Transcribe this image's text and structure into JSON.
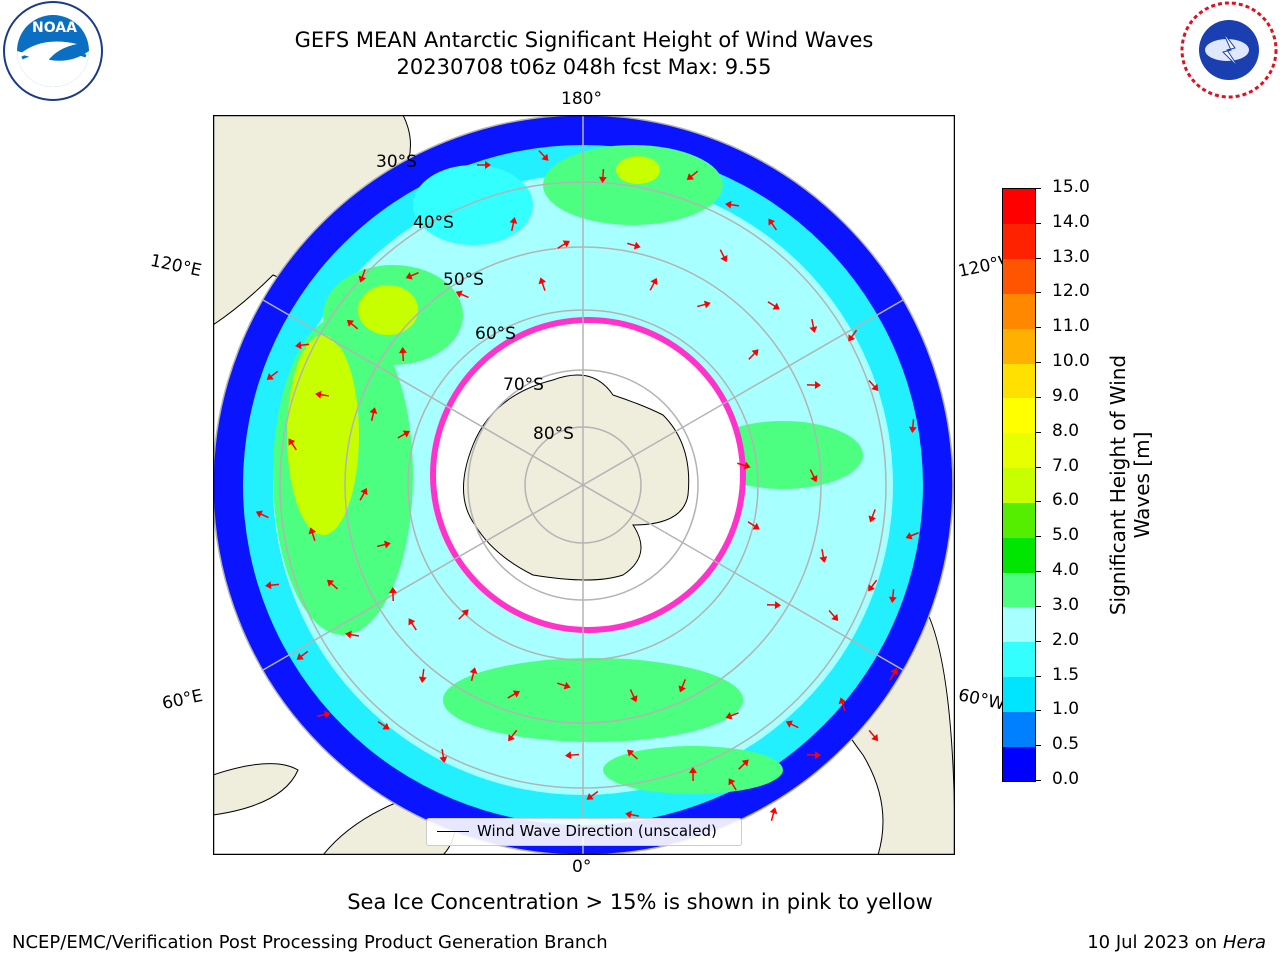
{
  "title": {
    "line1": "GEFS MEAN Antarctic Significant Height of Wind Waves",
    "line2": "20230708 t06z 048h fcst   Max: 9.55"
  },
  "logos": {
    "left": {
      "icon": "noaa-logo-icon",
      "text": "NOAA"
    },
    "right": {
      "icon": "nws-logo-icon",
      "text": "NATIONAL WEATHER SERVICE"
    }
  },
  "map": {
    "projection": "south-polar-stereographic",
    "longitude_labels": {
      "top": "180°",
      "upper_left": "120°E",
      "upper_right": "120°W",
      "lower_left": "60°E",
      "lower_right": "60°W",
      "bottom": "0°"
    },
    "latitude_labels": [
      "30°S",
      "40°S",
      "50°S",
      "60°S",
      "70°S",
      "80°S"
    ],
    "legend": "Wind Wave Direction (unscaled)",
    "land_color": "#efeddc",
    "arrow_color": "#ff0000",
    "sea_ice_colors": [
      "#ff33cc",
      "#ffcc33"
    ]
  },
  "colorbar": {
    "label": "Significant Height of Wind Waves [m]",
    "ticks": [
      "0.0",
      "0.5",
      "1.0",
      "1.5",
      "2.0",
      "3.0",
      "4.0",
      "5.0",
      "6.0",
      "7.0",
      "8.0",
      "9.0",
      "10.0",
      "11.0",
      "12.0",
      "13.0",
      "14.0",
      "15.0"
    ],
    "colors": [
      "#0000ff",
      "#0080ff",
      "#00e5ff",
      "#33ffff",
      "#a8ffff",
      "#4dff80",
      "#00e600",
      "#55ee00",
      "#c8ff00",
      "#e8ff00",
      "#ffff00",
      "#ffe000",
      "#ffb000",
      "#ff8800",
      "#ff5500",
      "#ff2200",
      "#ff0000"
    ]
  },
  "note": "Sea Ice Concentration > 15% is shown in pink to yellow",
  "footer": {
    "left": "NCEP/EMC/Verification Post Processing Product Generation Branch",
    "right_prefix": "10 Jul 2023 on ",
    "right_italic": "Hera"
  }
}
